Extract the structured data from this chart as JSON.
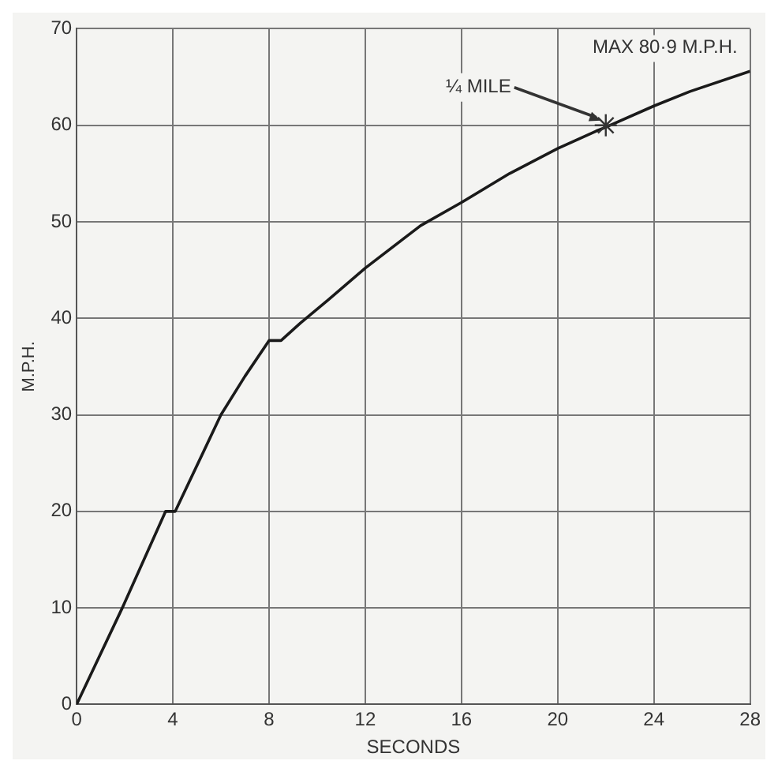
{
  "chart_data": {
    "type": "line",
    "xlabel": "SECONDS",
    "ylabel": "M.P.H.",
    "x": [
      0,
      1.9,
      3.7,
      4.1,
      6,
      7,
      8,
      8.5,
      9.3,
      10.5,
      12,
      14.3,
      16,
      18,
      20,
      21.6,
      22,
      24,
      25.5,
      28
    ],
    "series": [
      {
        "color": "#1a1a1a",
        "values": [
          0,
          10,
          20,
          20,
          30,
          34,
          37.7,
          37.7,
          39.5,
          42,
          45.2,
          49.6,
          52,
          55,
          57.6,
          59.4,
          59.8,
          62,
          63.5,
          65.6
        ]
      }
    ],
    "xlim": [
      0,
      28
    ],
    "xticks": [
      0,
      4,
      8,
      12,
      16,
      20,
      24,
      28
    ],
    "ylim": [
      0,
      70
    ],
    "yticks": [
      0,
      10,
      20,
      30,
      40,
      50,
      60,
      70
    ],
    "grid": true,
    "legend": false,
    "marker": "none",
    "line_style": "solid",
    "annotations": [
      "MAX 80·9 M.P.H.",
      {
        "text": "¼ MILE",
        "x": 22,
        "y": 60
      }
    ]
  }
}
